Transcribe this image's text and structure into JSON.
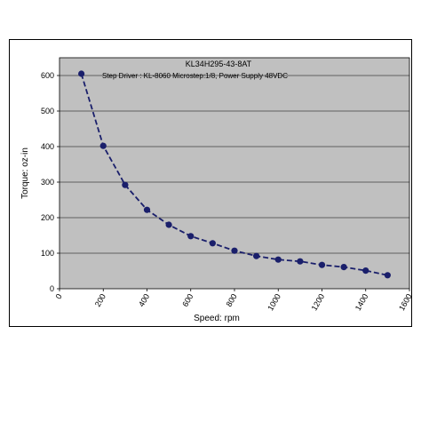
{
  "chart_data": {
    "type": "line",
    "title": "KL34H295-43-8AT",
    "annotation": "Step Driver : KL-8060 Microstep:1/8, Power Supply 48VDC",
    "xlabel": "Speed: rpm",
    "ylabel": "Torque: oz-in",
    "xlim": [
      0,
      1600
    ],
    "ylim": [
      0,
      650
    ],
    "xticks": [
      0,
      200,
      400,
      600,
      800,
      1000,
      1200,
      1400,
      1600
    ],
    "yticks": [
      0,
      100,
      200,
      300,
      400,
      500,
      600
    ],
    "grid": "horizontal",
    "legend": "none",
    "plot_background": "#c0c0c0",
    "series": [
      {
        "color": "#1a1f6b",
        "line_style": "dashed",
        "marker": "circle",
        "x": [
          100,
          200,
          300,
          400,
          500,
          600,
          700,
          800,
          900,
          1000,
          1100,
          1200,
          1300,
          1400,
          1500
        ],
        "y": [
          605,
          402,
          292,
          222,
          180,
          148,
          128,
          107,
          92,
          82,
          77,
          67,
          61,
          51,
          38
        ]
      }
    ]
  }
}
